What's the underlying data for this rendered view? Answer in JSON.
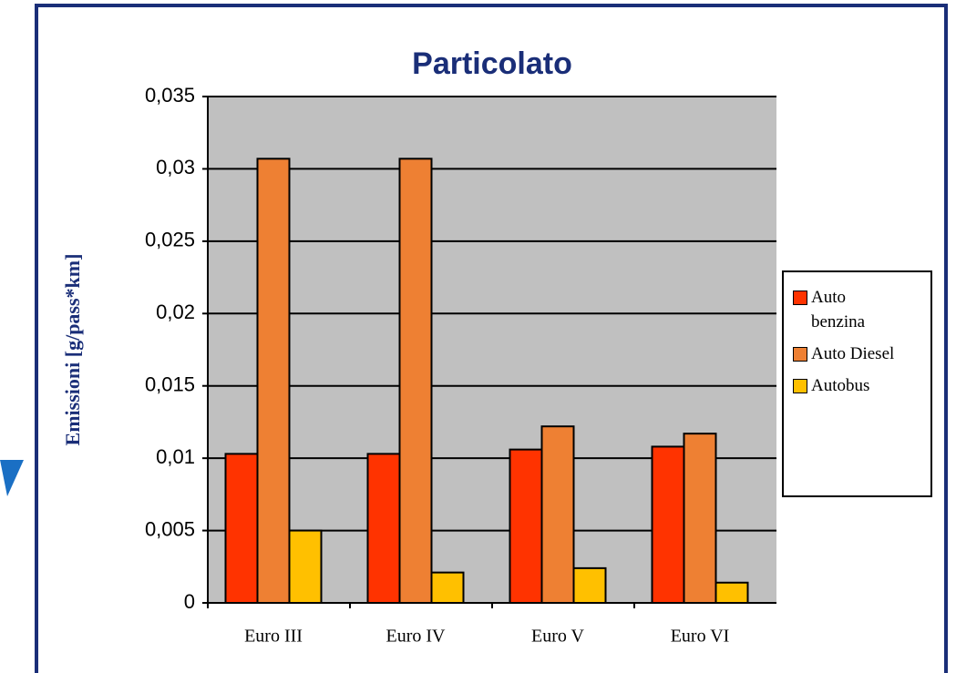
{
  "chart_data": {
    "type": "bar",
    "title": "Particolato",
    "ylabel": "Emissioni [g/pass*km]",
    "categories": [
      "Euro III",
      "Euro IV",
      "Euro V",
      "Euro VI"
    ],
    "series": [
      {
        "name": "Auto benzina",
        "color": "#ff3300",
        "values": [
          0.0103,
          0.0103,
          0.0106,
          0.0108
        ]
      },
      {
        "name": "Auto Diesel",
        "color": "#ee8033",
        "values": [
          0.0307,
          0.0307,
          0.0122,
          0.0117
        ]
      },
      {
        "name": "Autobus",
        "color": "#ffc000",
        "values": [
          0.005,
          0.0021,
          0.0024,
          0.0014
        ]
      }
    ],
    "ylim": [
      0,
      0.035
    ],
    "yticks": [
      0,
      {
        "value": 0.005,
        "label": "0,005"
      },
      {
        "value": 0.01,
        "label": "0,01"
      },
      {
        "value": 0.015,
        "label": "0,015"
      },
      {
        "value": 0.02,
        "label": "0,02"
      },
      {
        "value": 0.025,
        "label": "0,025"
      },
      {
        "value": 0.03,
        "label": "0,03"
      },
      {
        "value": 0.035,
        "label": "0,035"
      }
    ],
    "grid": true,
    "legend": "right"
  }
}
